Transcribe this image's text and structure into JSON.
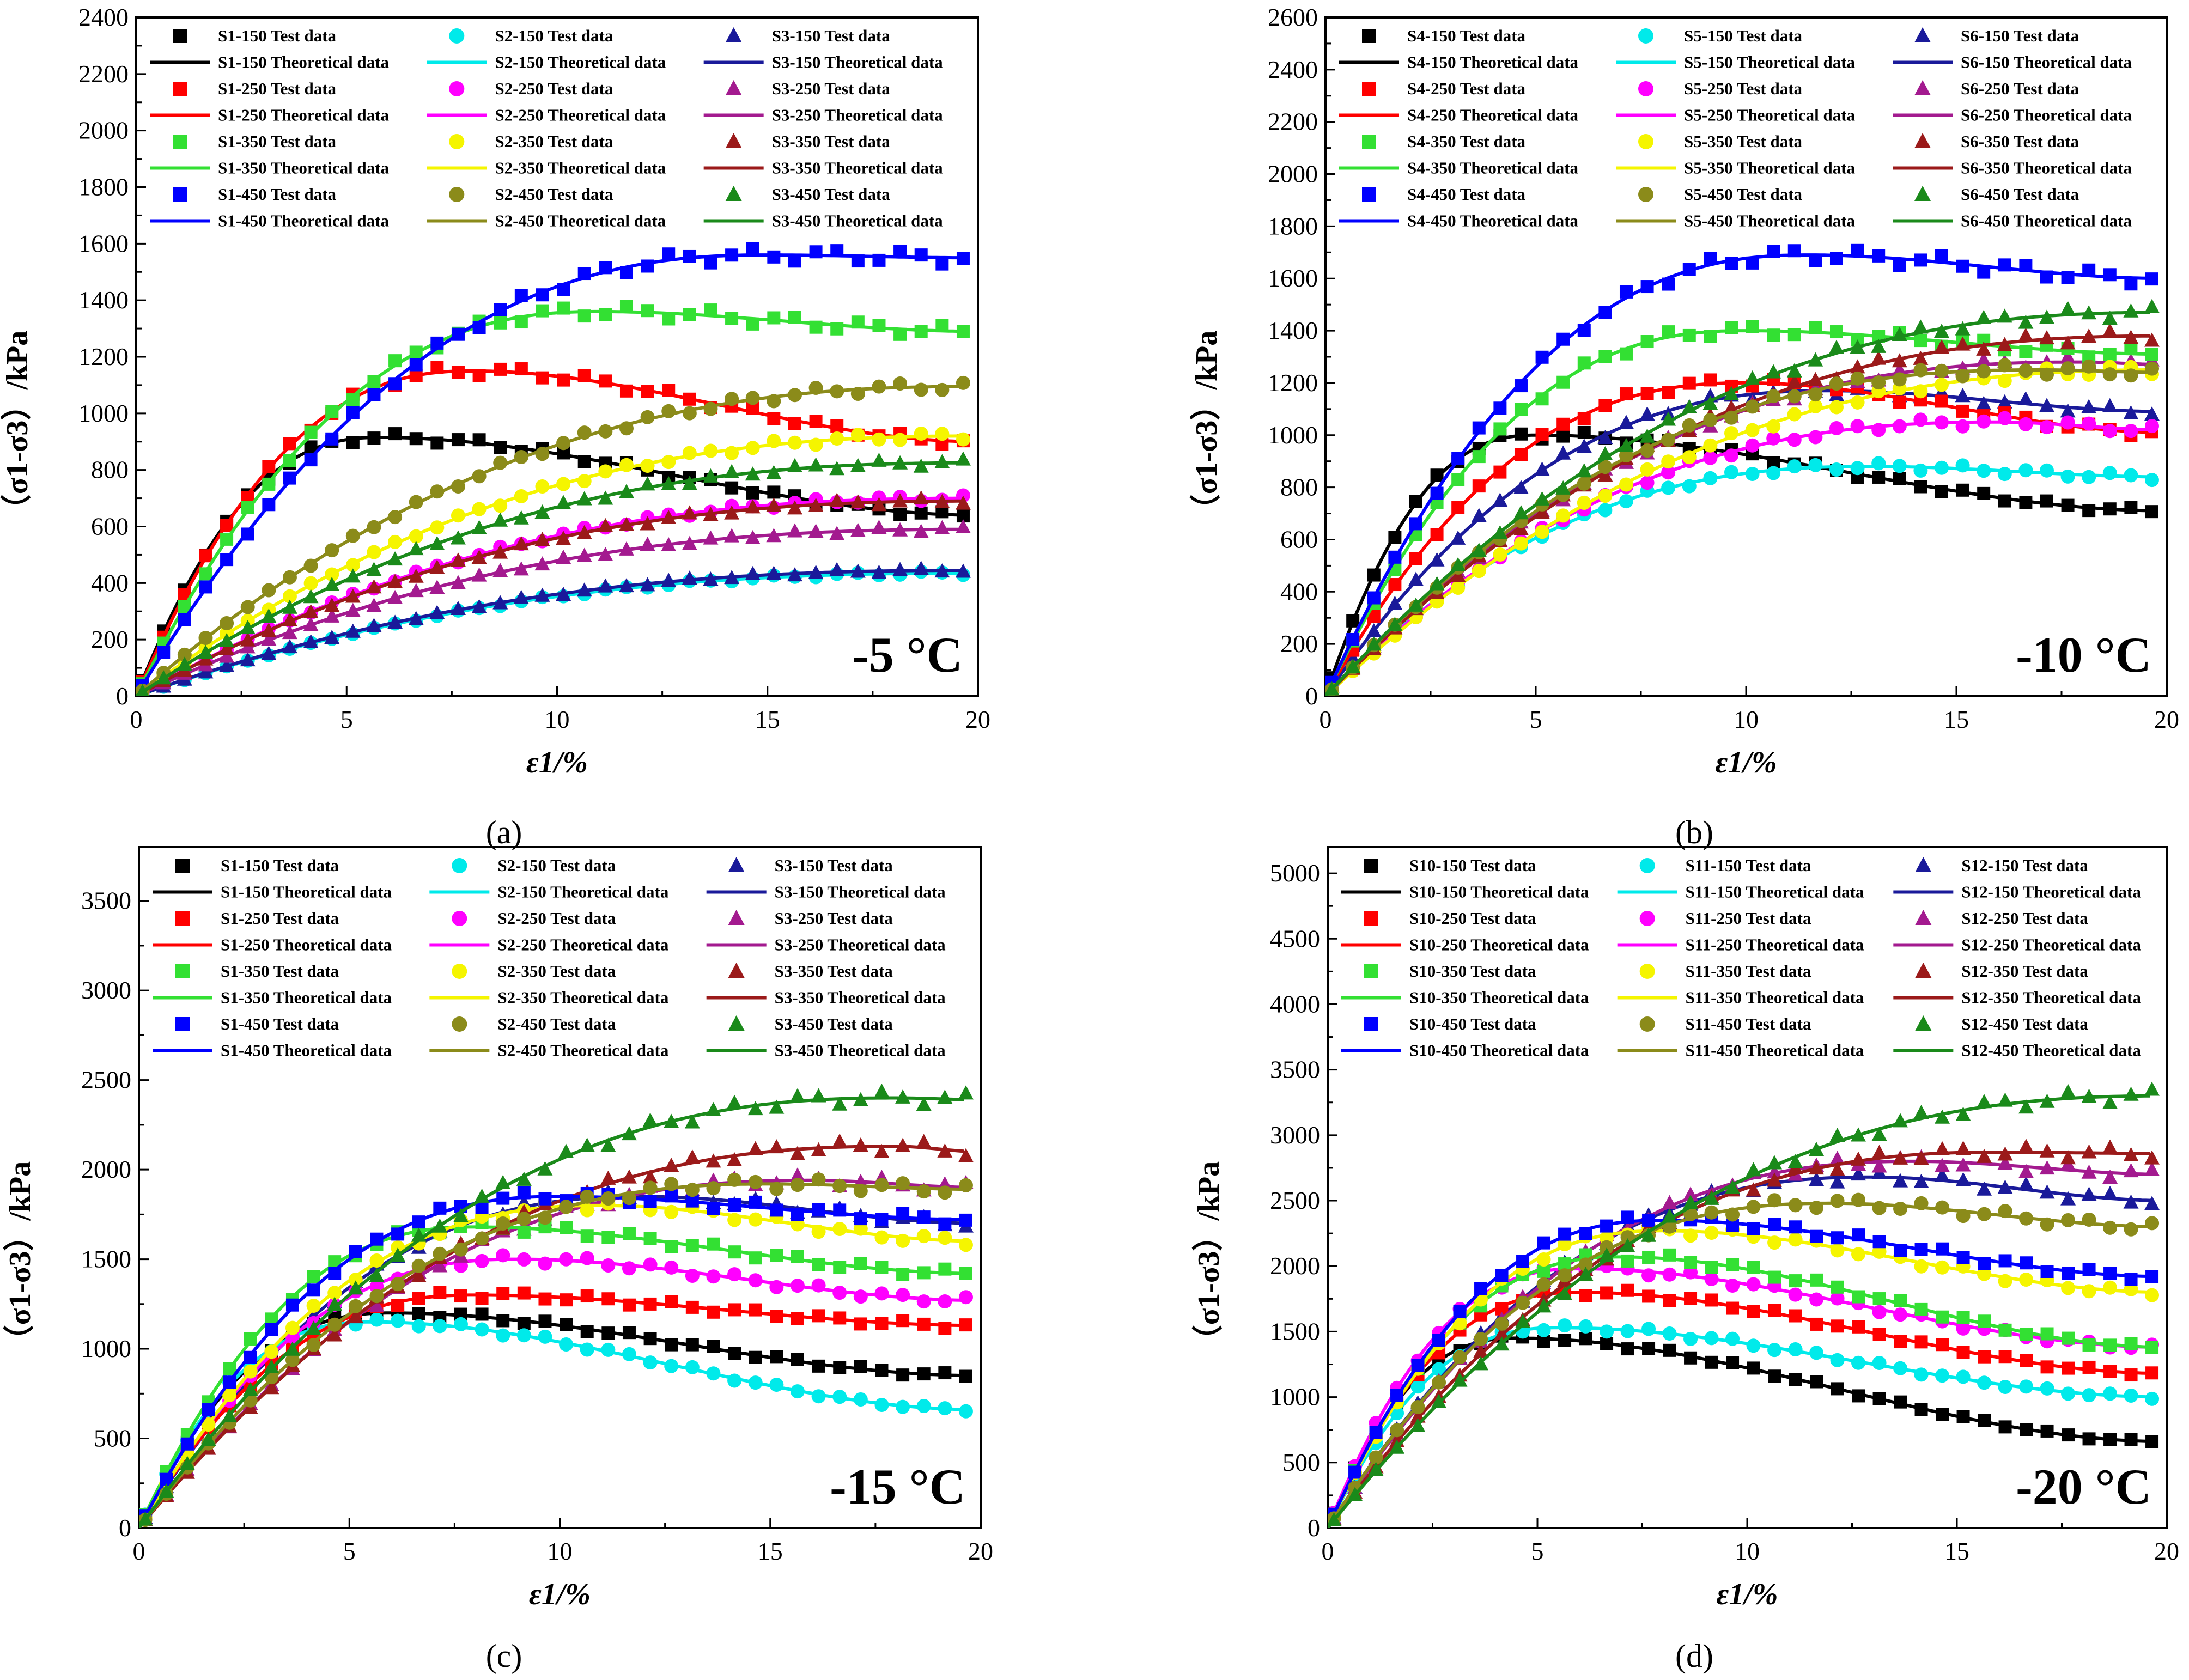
{
  "colors": {
    "series": [
      "#000000",
      "#00eaea",
      "#1a1a9a",
      "#ff0000",
      "#ff00ff",
      "#a31a8f",
      "#33e033",
      "#f5f500",
      "#9b1a1a",
      "#0000ff",
      "#8b8b1a",
      "#1a8a1a"
    ],
    "markers": [
      "square",
      "circle",
      "triangle"
    ]
  },
  "chart_data": [
    {
      "type": "scatter",
      "caption": "(a)",
      "annotation": "-5 °C",
      "xlabel": "ε1/%",
      "ylabel": "（σ1-σ3）/kPa",
      "xlim": [
        0,
        20
      ],
      "ylim": [
        0,
        2400
      ],
      "xticks": [
        0,
        5,
        10,
        15,
        20
      ],
      "yticks": [
        0,
        200,
        400,
        600,
        800,
        1000,
        1200,
        1400,
        1600,
        1800,
        2000,
        2200,
        2400
      ],
      "series": [
        {
          "test_label": "S1-150 Test data",
          "theory_label": "S1-150 Theoretical data",
          "peak": 915,
          "peak_x": 5.8,
          "end": 640
        },
        {
          "test_label": "S2-150 Test data",
          "theory_label": "S2-150 Theoretical data",
          "peak": 435,
          "peak_x": 20,
          "end": 435
        },
        {
          "test_label": "S3-150 Test data",
          "theory_label": "S3-150 Theoretical data",
          "peak": 445,
          "peak_x": 20,
          "end": 445
        },
        {
          "test_label": "S1-250 Test data",
          "theory_label": "S1-250 Theoretical data",
          "peak": 1150,
          "peak_x": 8,
          "end": 900
        },
        {
          "test_label": "S2-250 Test data",
          "theory_label": "S2-250 Theoretical data",
          "peak": 700,
          "peak_x": 20,
          "end": 700
        },
        {
          "test_label": "S3-250 Test data",
          "theory_label": "S3-250 Theoretical data",
          "peak": 590,
          "peak_x": 20,
          "end": 590
        },
        {
          "test_label": "S1-350 Test data",
          "theory_label": "S1-350 Theoretical data",
          "peak": 1360,
          "peak_x": 11,
          "end": 1290
        },
        {
          "test_label": "S2-350 Test data",
          "theory_label": "S2-350 Theoretical data",
          "peak": 920,
          "peak_x": 20,
          "end": 920
        },
        {
          "test_label": "S3-350 Test data",
          "theory_label": "S3-350 Theoretical data",
          "peak": 690,
          "peak_x": 20,
          "end": 690
        },
        {
          "test_label": "S1-450 Test data",
          "theory_label": "S1-450 Theoretical data",
          "peak": 1560,
          "peak_x": 15,
          "end": 1550
        },
        {
          "test_label": "S2-450 Test data",
          "theory_label": "S2-450 Theoretical data",
          "peak": 1095,
          "peak_x": 20,
          "end": 1095
        },
        {
          "test_label": "S3-450 Test data",
          "theory_label": "S3-450 Theoretical data",
          "peak": 825,
          "peak_x": 20,
          "end": 825
        }
      ]
    },
    {
      "type": "scatter",
      "caption": "(b)",
      "annotation": "-10 °C",
      "xlabel": "ε1/%",
      "ylabel": "（σ1-σ3）/kPa",
      "xlim": [
        0,
        20
      ],
      "ylim": [
        0,
        2600
      ],
      "xticks": [
        0,
        5,
        10,
        15,
        20
      ],
      "yticks": [
        0,
        200,
        400,
        600,
        800,
        1000,
        1200,
        1400,
        1600,
        1800,
        2000,
        2200,
        2400,
        2600
      ],
      "series": [
        {
          "test_label": "S4-150 Test data",
          "theory_label": "S4-150 Theoretical data",
          "peak": 1000,
          "peak_x": 5,
          "end": 710
        },
        {
          "test_label": "S5-150 Test data",
          "theory_label": "S5-150 Theoretical data",
          "peak": 880,
          "peak_x": 13,
          "end": 840
        },
        {
          "test_label": "S6-150 Test data",
          "theory_label": "S6-150 Theoretical data",
          "peak": 1170,
          "peak_x": 12,
          "end": 1090
        },
        {
          "test_label": "S4-250 Test data",
          "theory_label": "S4-250 Theoretical data",
          "peak": 1200,
          "peak_x": 10,
          "end": 1010
        },
        {
          "test_label": "S5-250 Test data",
          "theory_label": "S5-250 Theoretical data",
          "peak": 1050,
          "peak_x": 16,
          "end": 1020
        },
        {
          "test_label": "S6-250 Test data",
          "theory_label": "S6-250 Theoretical data",
          "peak": 1280,
          "peak_x": 18,
          "end": 1270
        },
        {
          "test_label": "S4-350 Test data",
          "theory_label": "S4-350 Theoretical data",
          "peak": 1400,
          "peak_x": 10,
          "end": 1310
        },
        {
          "test_label": "S5-350 Test data",
          "theory_label": "S5-350 Theoretical data",
          "peak": 1250,
          "peak_x": 20,
          "end": 1250
        },
        {
          "test_label": "S6-350 Test data",
          "theory_label": "S6-350 Theoretical data",
          "peak": 1380,
          "peak_x": 20,
          "end": 1380
        },
        {
          "test_label": "S4-450 Test data",
          "theory_label": "S4-450 Theoretical data",
          "peak": 1690,
          "peak_x": 11.5,
          "end": 1600
        },
        {
          "test_label": "S5-450 Test data",
          "theory_label": "S5-450 Theoretical data",
          "peak": 1250,
          "peak_x": 17,
          "end": 1240
        },
        {
          "test_label": "S6-450 Test data",
          "theory_label": "S6-450 Theoretical data",
          "peak": 1470,
          "peak_x": 20,
          "end": 1470
        }
      ]
    },
    {
      "type": "scatter",
      "caption": "(c)",
      "annotation": "-15 °C",
      "xlabel": "ε1/%",
      "ylabel": "（σ1-σ3）/kPa",
      "xlim": [
        0,
        20
      ],
      "ylim": [
        0,
        3800
      ],
      "xticks": [
        0,
        5,
        10,
        15,
        20
      ],
      "yticks": [
        0,
        500,
        1000,
        1500,
        2000,
        2500,
        3000,
        3500
      ],
      "series": [
        {
          "test_label": "S1-150 Test data",
          "theory_label": "S1-150 Theoretical data",
          "peak": 1200,
          "peak_x": 6,
          "end": 850
        },
        {
          "test_label": "S2-150 Test data",
          "theory_label": "S2-150 Theoretical data",
          "peak": 1150,
          "peak_x": 5.5,
          "end": 660
        },
        {
          "test_label": "S3-150 Test data",
          "theory_label": "S3-150 Theoretical data",
          "peak": 1850,
          "peak_x": 12,
          "end": 1700
        },
        {
          "test_label": "S1-250 Test data",
          "theory_label": "S1-250 Theoretical data",
          "peak": 1300,
          "peak_x": 8,
          "end": 1130
        },
        {
          "test_label": "S2-250 Test data",
          "theory_label": "S2-250 Theoretical data",
          "peak": 1500,
          "peak_x": 9,
          "end": 1270
        },
        {
          "test_label": "S3-250 Test data",
          "theory_label": "S3-250 Theoretical data",
          "peak": 1940,
          "peak_x": 16,
          "end": 1900
        },
        {
          "test_label": "S1-350 Test data",
          "theory_label": "S1-350 Theoretical data",
          "peak": 1680,
          "peak_x": 8,
          "end": 1420
        },
        {
          "test_label": "S2-350 Test data",
          "theory_label": "S2-350 Theoretical data",
          "peak": 1800,
          "peak_x": 11,
          "end": 1600
        },
        {
          "test_label": "S3-350 Test data",
          "theory_label": "S3-350 Theoretical data",
          "peak": 2130,
          "peak_x": 18,
          "end": 2100
        },
        {
          "test_label": "S1-450 Test data",
          "theory_label": "S1-450 Theoretical data",
          "peak": 1850,
          "peak_x": 10,
          "end": 1720
        },
        {
          "test_label": "S2-450 Test data",
          "theory_label": "S2-450 Theoretical data",
          "peak": 1920,
          "peak_x": 15,
          "end": 1890
        },
        {
          "test_label": "S3-450 Test data",
          "theory_label": "S3-450 Theoretical data",
          "peak": 2400,
          "peak_x": 18,
          "end": 2390
        }
      ]
    },
    {
      "type": "scatter",
      "caption": "(d)",
      "annotation": "-20 °C",
      "xlabel": "ε1/%",
      "ylabel": "（σ1-σ3）/kPa",
      "xlim": [
        0,
        20
      ],
      "ylim": [
        0,
        5200
      ],
      "xticks": [
        0,
        5,
        10,
        15,
        20
      ],
      "yticks": [
        0,
        500,
        1000,
        1500,
        2000,
        2500,
        3000,
        3500,
        4000,
        4500,
        5000
      ],
      "series": [
        {
          "test_label": "S10-150 Test data",
          "theory_label": "S10-150 Theoretical data",
          "peak": 1450,
          "peak_x": 4.5,
          "end": 660
        },
        {
          "test_label": "S11-150 Test data",
          "theory_label": "S11-150 Theoretical data",
          "peak": 1530,
          "peak_x": 5.5,
          "end": 1000
        },
        {
          "test_label": "S12-150 Test data",
          "theory_label": "S12-150 Theoretical data",
          "peak": 2680,
          "peak_x": 13,
          "end": 2500
        },
        {
          "test_label": "S10-250 Test data",
          "theory_label": "S10-250 Theoretical data",
          "peak": 1800,
          "peak_x": 6,
          "end": 1180
        },
        {
          "test_label": "S11-250 Test data",
          "theory_label": "S11-250 Theoretical data",
          "peak": 1980,
          "peak_x": 6,
          "end": 1380
        },
        {
          "test_label": "S12-250 Test data",
          "theory_label": "S12-250 Theoretical data",
          "peak": 2800,
          "peak_x": 14,
          "end": 2700
        },
        {
          "test_label": "S10-350 Test data",
          "theory_label": "S10-350 Theoretical data",
          "peak": 2070,
          "peak_x": 7,
          "end": 1380
        },
        {
          "test_label": "S11-350 Test data",
          "theory_label": "S11-350 Theoretical data",
          "peak": 2270,
          "peak_x": 8,
          "end": 1800
        },
        {
          "test_label": "S12-350 Test data",
          "theory_label": "S12-350 Theoretical data",
          "peak": 2870,
          "peak_x": 16,
          "end": 2860
        },
        {
          "test_label": "S10-450 Test data",
          "theory_label": "S10-450 Theoretical data",
          "peak": 2350,
          "peak_x": 8,
          "end": 1920
        },
        {
          "test_label": "S11-450 Test data",
          "theory_label": "S11-450 Theoretical data",
          "peak": 2480,
          "peak_x": 12,
          "end": 2300
        },
        {
          "test_label": "S12-450 Test data",
          "theory_label": "S12-450 Theoretical data",
          "peak": 3300,
          "peak_x": 20,
          "end": 3300
        }
      ]
    }
  ]
}
